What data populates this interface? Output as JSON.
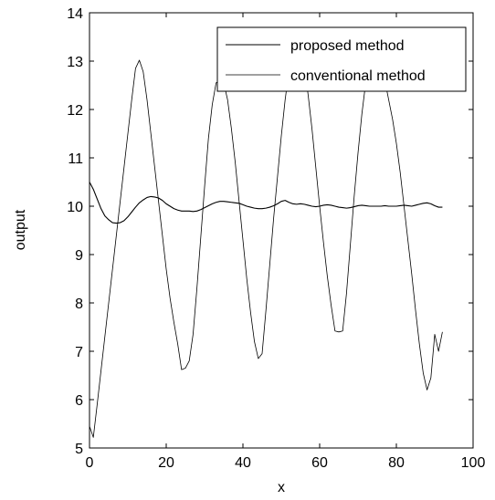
{
  "chart_data": {
    "type": "line",
    "title": "",
    "xlabel": "x",
    "ylabel": "output",
    "xlim": [
      0,
      100
    ],
    "ylim": [
      5,
      14
    ],
    "xticks": [
      "0",
      "20",
      "40",
      "60",
      "80",
      "100"
    ],
    "yticks": [
      "5",
      "6",
      "7",
      "8",
      "9",
      "10",
      "11",
      "12",
      "13",
      "14"
    ],
    "grid": false,
    "legend_position": "top-right",
    "line_color": "#000000",
    "series": [
      {
        "name": "proposed method",
        "x": [
          0,
          1,
          2,
          3,
          4,
          5,
          6,
          7,
          8,
          9,
          10,
          11,
          12,
          13,
          14,
          15,
          16,
          17,
          18,
          19,
          20,
          21,
          22,
          23,
          24,
          25,
          26,
          27,
          28,
          29,
          30,
          31,
          32,
          33,
          34,
          35,
          36,
          37,
          38,
          39,
          40,
          41,
          42,
          43,
          44,
          45,
          46,
          47,
          48,
          49,
          50,
          51,
          52,
          53,
          54,
          55,
          56,
          57,
          58,
          59,
          60,
          61,
          62,
          63,
          64,
          65,
          66,
          67,
          68,
          69,
          70,
          71,
          72,
          73,
          74,
          75,
          76,
          77,
          78,
          79,
          80,
          81,
          82,
          83,
          84,
          85,
          86,
          87,
          88,
          89,
          90,
          91,
          92
        ],
        "y": [
          10.5,
          10.35,
          10.15,
          9.95,
          9.8,
          9.72,
          9.66,
          9.65,
          9.66,
          9.7,
          9.78,
          9.88,
          9.98,
          10.07,
          10.13,
          10.18,
          10.2,
          10.19,
          10.17,
          10.12,
          10.05,
          10.0,
          9.95,
          9.92,
          9.9,
          9.9,
          9.9,
          9.89,
          9.9,
          9.93,
          9.97,
          10.01,
          10.05,
          10.08,
          10.1,
          10.1,
          10.09,
          10.08,
          10.07,
          10.06,
          10.03,
          10.0,
          9.98,
          9.96,
          9.95,
          9.95,
          9.96,
          9.98,
          10.01,
          10.05,
          10.1,
          10.12,
          10.08,
          10.05,
          10.04,
          10.05,
          10.04,
          10.02,
          10.0,
          9.99,
          10.0,
          10.02,
          10.03,
          10.02,
          10.0,
          9.98,
          9.97,
          9.96,
          9.97,
          9.99,
          10.01,
          10.02,
          10.01,
          10.0,
          10.0,
          10.0,
          10.0,
          10.01,
          10.0,
          10.0,
          10.0,
          10.01,
          10.02,
          10.01,
          10.0,
          10.02,
          10.04,
          10.06,
          10.07,
          10.05,
          10.01,
          9.98,
          9.98
        ]
      },
      {
        "name": "conventional method",
        "x": [
          0,
          1,
          2,
          3,
          4,
          5,
          6,
          7,
          8,
          9,
          10,
          11,
          12,
          13,
          14,
          15,
          16,
          17,
          18,
          19,
          20,
          21,
          22,
          23,
          24,
          25,
          26,
          27,
          28,
          29,
          30,
          31,
          32,
          33,
          34,
          35,
          36,
          37,
          38,
          39,
          40,
          41,
          42,
          43,
          44,
          45,
          46,
          47,
          48,
          49,
          50,
          51,
          52,
          53,
          54,
          55,
          56,
          57,
          58,
          59,
          60,
          61,
          62,
          63,
          64,
          65,
          66,
          67,
          68,
          69,
          70,
          71,
          72,
          73,
          74,
          75,
          76,
          77,
          78,
          79,
          80,
          81,
          82,
          83,
          84,
          85,
          86,
          87,
          88,
          89,
          90,
          91,
          92
        ],
        "y": [
          5.45,
          5.22,
          5.9,
          6.6,
          7.3,
          8.0,
          8.7,
          9.4,
          10.1,
          10.8,
          11.5,
          12.2,
          12.85,
          13.02,
          12.78,
          12.2,
          11.5,
          10.8,
          10.1,
          9.4,
          8.7,
          8.1,
          7.6,
          7.15,
          6.62,
          6.65,
          6.8,
          7.35,
          8.3,
          9.35,
          10.4,
          11.4,
          12.1,
          12.55,
          12.6,
          12.55,
          12.2,
          11.6,
          10.9,
          10.1,
          9.3,
          8.5,
          7.8,
          7.2,
          6.85,
          6.95,
          7.85,
          8.8,
          9.75,
          10.6,
          11.45,
          12.2,
          12.8,
          13.2,
          13.35,
          13.25,
          12.9,
          12.3,
          11.6,
          10.8,
          10.0,
          9.25,
          8.55,
          7.95,
          7.42,
          7.4,
          7.42,
          8.2,
          9.2,
          10.2,
          11.1,
          11.9,
          12.55,
          13.0,
          13.22,
          13.2,
          12.95,
          12.6,
          12.2,
          11.8,
          11.3,
          10.7,
          10.0,
          9.3,
          8.6,
          7.85,
          7.15,
          6.55,
          6.2,
          6.45,
          7.35,
          7.0,
          7.4
        ]
      }
    ]
  }
}
